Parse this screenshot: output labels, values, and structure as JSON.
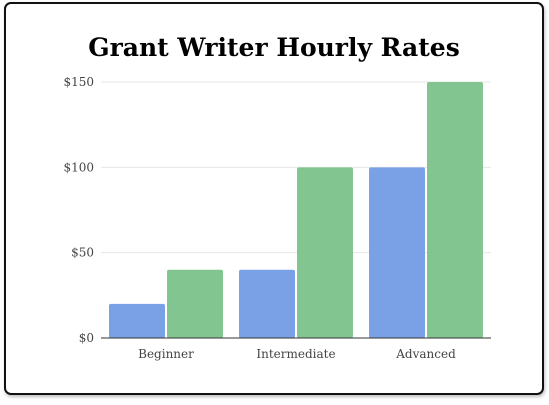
{
  "chart_data": {
    "type": "bar",
    "title": "Grant Writer Hourly Rates",
    "xlabel": "",
    "ylabel": "",
    "categories": [
      "Beginner",
      "Intermediate",
      "Advanced"
    ],
    "series": [
      {
        "values": [
          20,
          40,
          100
        ],
        "color": "#7aa1e5"
      },
      {
        "values": [
          40,
          100,
          150
        ],
        "color": "#82c590"
      }
    ],
    "ylim": [
      0,
      150
    ],
    "y_ticks": [
      0,
      50,
      100,
      150
    ],
    "y_tick_labels": [
      "$0",
      "$50",
      "$100",
      "$150"
    ],
    "grid": true,
    "legend": "none"
  }
}
